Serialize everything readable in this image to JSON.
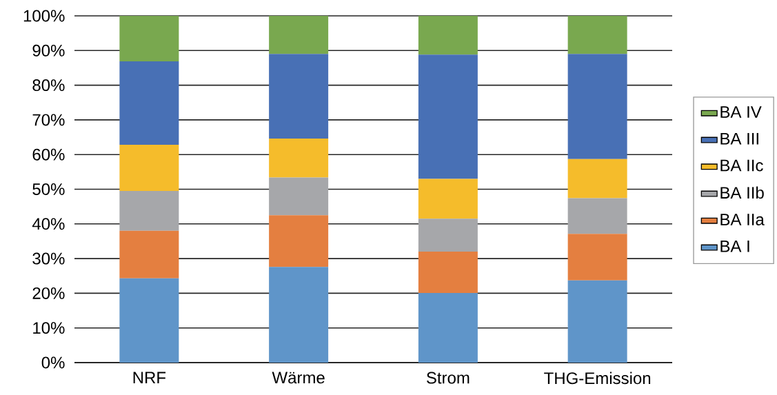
{
  "chart_data": {
    "type": "bar",
    "stacked": true,
    "categories": [
      "NRF",
      "Wärme",
      "Strom",
      "THG-Emission"
    ],
    "series": [
      {
        "name": "BA I",
        "color": "#5f95c9",
        "values": [
          24.3,
          27.6,
          20.1,
          23.7
        ]
      },
      {
        "name": "BA IIa",
        "color": "#e47f40",
        "values": [
          13.7,
          14.9,
          11.9,
          13.4
        ]
      },
      {
        "name": "BA IIb",
        "color": "#a6a7aa",
        "values": [
          11.5,
          10.9,
          9.5,
          10.3
        ]
      },
      {
        "name": "BA IIc",
        "color": "#f5bc2b",
        "values": [
          13.3,
          11.2,
          11.5,
          11.3
        ]
      },
      {
        "name": "BA III",
        "color": "#4870b5",
        "values": [
          24.1,
          24.4,
          35.8,
          30.3
        ]
      },
      {
        "name": "BA IV",
        "color": "#79a84f",
        "values": [
          13.1,
          11.0,
          11.2,
          11.0
        ]
      }
    ],
    "ylim": [
      0,
      100
    ],
    "yticks": [
      {
        "value": 0,
        "label": "0%"
      },
      {
        "value": 10,
        "label": "10%"
      },
      {
        "value": 20,
        "label": "20%"
      },
      {
        "value": 30,
        "label": "30%"
      },
      {
        "value": 40,
        "label": "40%"
      },
      {
        "value": 50,
        "label": "50%"
      },
      {
        "value": 60,
        "label": "60%"
      },
      {
        "value": 70,
        "label": "70%"
      },
      {
        "value": 80,
        "label": "80%"
      },
      {
        "value": 90,
        "label": "90%"
      },
      {
        "value": 100,
        "label": "100%"
      }
    ],
    "grid": "y",
    "legend": "right"
  }
}
